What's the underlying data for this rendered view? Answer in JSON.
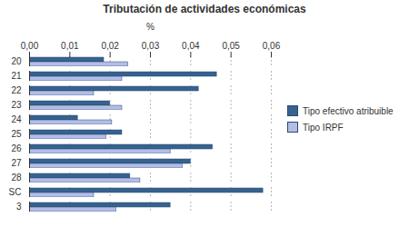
{
  "chart_data": {
    "type": "bar",
    "orientation": "horizontal",
    "title": "Tributación de actividades económicas",
    "x_label": "%",
    "categories": [
      "20",
      "21",
      "22",
      "23",
      "24",
      "25",
      "26",
      "27",
      "28",
      "SC",
      "3"
    ],
    "series": [
      {
        "name": "Tipo efectivo atribuible",
        "color": "#36628f",
        "values": [
          0.0185,
          0.0465,
          0.042,
          0.02,
          0.012,
          0.023,
          0.0455,
          0.04,
          0.025,
          0.058,
          0.035
        ]
      },
      {
        "name": "Tipo IRPF",
        "color": "#b3bde6",
        "values": [
          0.0245,
          0.023,
          0.016,
          0.023,
          0.0205,
          0.019,
          0.035,
          0.038,
          0.0275,
          0.016,
          0.0215
        ]
      }
    ],
    "xlim": [
      0,
      0.06
    ],
    "xticks": [
      {
        "value": 0,
        "label": "0,00"
      },
      {
        "value": 0.01,
        "label": "0,01"
      },
      {
        "value": 0.02,
        "label": "0,02"
      },
      {
        "value": 0.03,
        "label": "0,03"
      },
      {
        "value": 0.04,
        "label": "0,04"
      },
      {
        "value": 0.05,
        "label": "0,05"
      },
      {
        "value": 0.06,
        "label": "0,06"
      }
    ],
    "grid": true,
    "legend": "right"
  }
}
